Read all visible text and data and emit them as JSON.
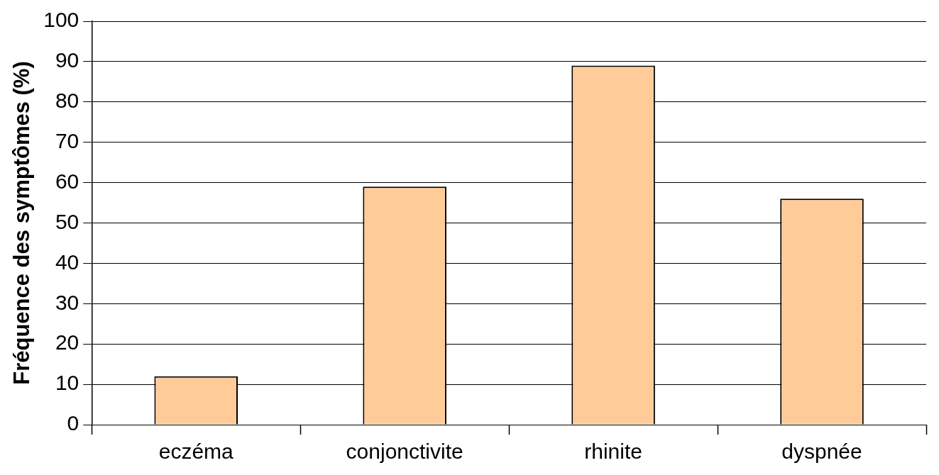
{
  "chart_data": {
    "type": "bar",
    "ylabel": "Fréquence des symptômes (%)",
    "categories": [
      "eczéma",
      "conjonctivite",
      "rhinite",
      "dyspnée"
    ],
    "values": [
      12,
      59,
      89,
      56
    ],
    "color": "#ffcc99",
    "ylim": [
      0,
      100
    ],
    "yticks": [
      0,
      10,
      20,
      30,
      40,
      50,
      60,
      70,
      80,
      90,
      100
    ],
    "grid": "y",
    "legend": false
  }
}
